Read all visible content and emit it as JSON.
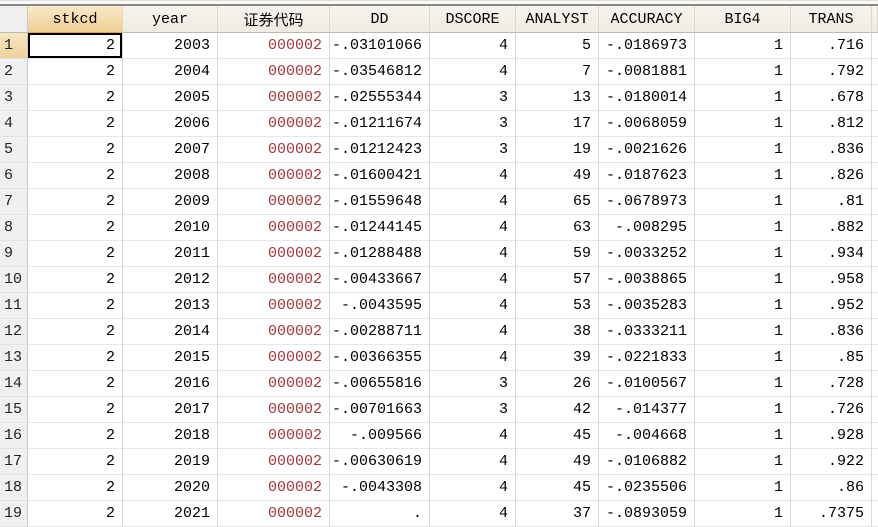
{
  "app": "data-editor-grid",
  "table": {
    "corner_label": "",
    "columns": [
      {
        "key": "stkcd",
        "label": "stkcd",
        "selected": true,
        "string": false
      },
      {
        "key": "year",
        "label": "year",
        "selected": false,
        "string": false
      },
      {
        "key": "sec-code",
        "label": "证券代码",
        "selected": false,
        "string": true
      },
      {
        "key": "dd",
        "label": "DD",
        "selected": false,
        "string": false
      },
      {
        "key": "dscore",
        "label": "DSCORE",
        "selected": false,
        "string": false
      },
      {
        "key": "analyst",
        "label": "ANALYST",
        "selected": false,
        "string": false
      },
      {
        "key": "accuracy",
        "label": "ACCURACY",
        "selected": false,
        "string": false
      },
      {
        "key": "big4",
        "label": "BIG4",
        "selected": false,
        "string": false
      },
      {
        "key": "trans",
        "label": "TRANS",
        "selected": false,
        "string": false
      },
      {
        "key": "overflow",
        "label": "",
        "selected": false,
        "string": false
      }
    ],
    "row_numbers": [
      "1",
      "2",
      "3",
      "4",
      "5",
      "6",
      "7",
      "8",
      "9",
      "10",
      "11",
      "12",
      "13",
      "14",
      "15",
      "16",
      "17",
      "18",
      "19"
    ],
    "rows": [
      [
        "2",
        "2003",
        "000002",
        "-.03101066",
        "4",
        "5",
        "-.0186973",
        "1",
        ".716",
        ""
      ],
      [
        "2",
        "2004",
        "000002",
        "-.03546812",
        "4",
        "7",
        "-.0081881",
        "1",
        ".792",
        ""
      ],
      [
        "2",
        "2005",
        "000002",
        "-.02555344",
        "3",
        "13",
        "-.0180014",
        "1",
        ".678",
        ""
      ],
      [
        "2",
        "2006",
        "000002",
        "-.01211674",
        "3",
        "17",
        "-.0068059",
        "1",
        ".812",
        ""
      ],
      [
        "2",
        "2007",
        "000002",
        "-.01212423",
        "3",
        "19",
        "-.0021626",
        "1",
        ".836",
        ""
      ],
      [
        "2",
        "2008",
        "000002",
        "-.01600421",
        "4",
        "49",
        "-.0187623",
        "1",
        ".826",
        ""
      ],
      [
        "2",
        "2009",
        "000002",
        "-.01559648",
        "4",
        "65",
        "-.0678973",
        "1",
        ".81",
        ""
      ],
      [
        "2",
        "2010",
        "000002",
        "-.01244145",
        "4",
        "63",
        "-.008295",
        "1",
        ".882",
        ""
      ],
      [
        "2",
        "2011",
        "000002",
        "-.01288488",
        "4",
        "59",
        "-.0033252",
        "1",
        ".934",
        ""
      ],
      [
        "2",
        "2012",
        "000002",
        "-.00433667",
        "4",
        "57",
        "-.0038865",
        "1",
        ".958",
        ""
      ],
      [
        "2",
        "2013",
        "000002",
        "-.0043595",
        "4",
        "53",
        "-.0035283",
        "1",
        ".952",
        ""
      ],
      [
        "2",
        "2014",
        "000002",
        "-.00288711",
        "4",
        "38",
        "-.0333211",
        "1",
        ".836",
        ""
      ],
      [
        "2",
        "2015",
        "000002",
        "-.00366355",
        "4",
        "39",
        "-.0221833",
        "1",
        ".85",
        ""
      ],
      [
        "2",
        "2016",
        "000002",
        "-.00655816",
        "3",
        "26",
        "-.0100567",
        "1",
        ".728",
        ""
      ],
      [
        "2",
        "2017",
        "000002",
        "-.00701663",
        "3",
        "42",
        "-.014377",
        "1",
        ".726",
        ""
      ],
      [
        "2",
        "2018",
        "000002",
        "-.009566",
        "4",
        "45",
        "-.004668",
        "1",
        ".928",
        ""
      ],
      [
        "2",
        "2019",
        "000002",
        "-.00630619",
        "4",
        "49",
        "-.0106882",
        "1",
        ".922",
        ""
      ],
      [
        "2",
        "2020",
        "000002",
        "-.0043308",
        "4",
        "45",
        "-.0235506",
        "1",
        ".86",
        ""
      ],
      [
        "2",
        "2021",
        "000002",
        ".",
        "4",
        "37",
        "-.0893059",
        "1",
        ".7375",
        ""
      ]
    ],
    "selection": {
      "row_index": 0,
      "col_index": 0,
      "row_number": "1",
      "column": "stkcd"
    },
    "colors": {
      "selected_header_top": "#f9e9c8",
      "selected_header_bottom": "#eecf94",
      "header_bg": "#f5f3ec",
      "header_border": "#bdb9ad",
      "string_text": "#a8353a",
      "grid_line": "#d8d8d8",
      "row_number_bg": "#f0f0f0",
      "selection_border": "#000000",
      "top_edge_line": "#878787"
    }
  }
}
